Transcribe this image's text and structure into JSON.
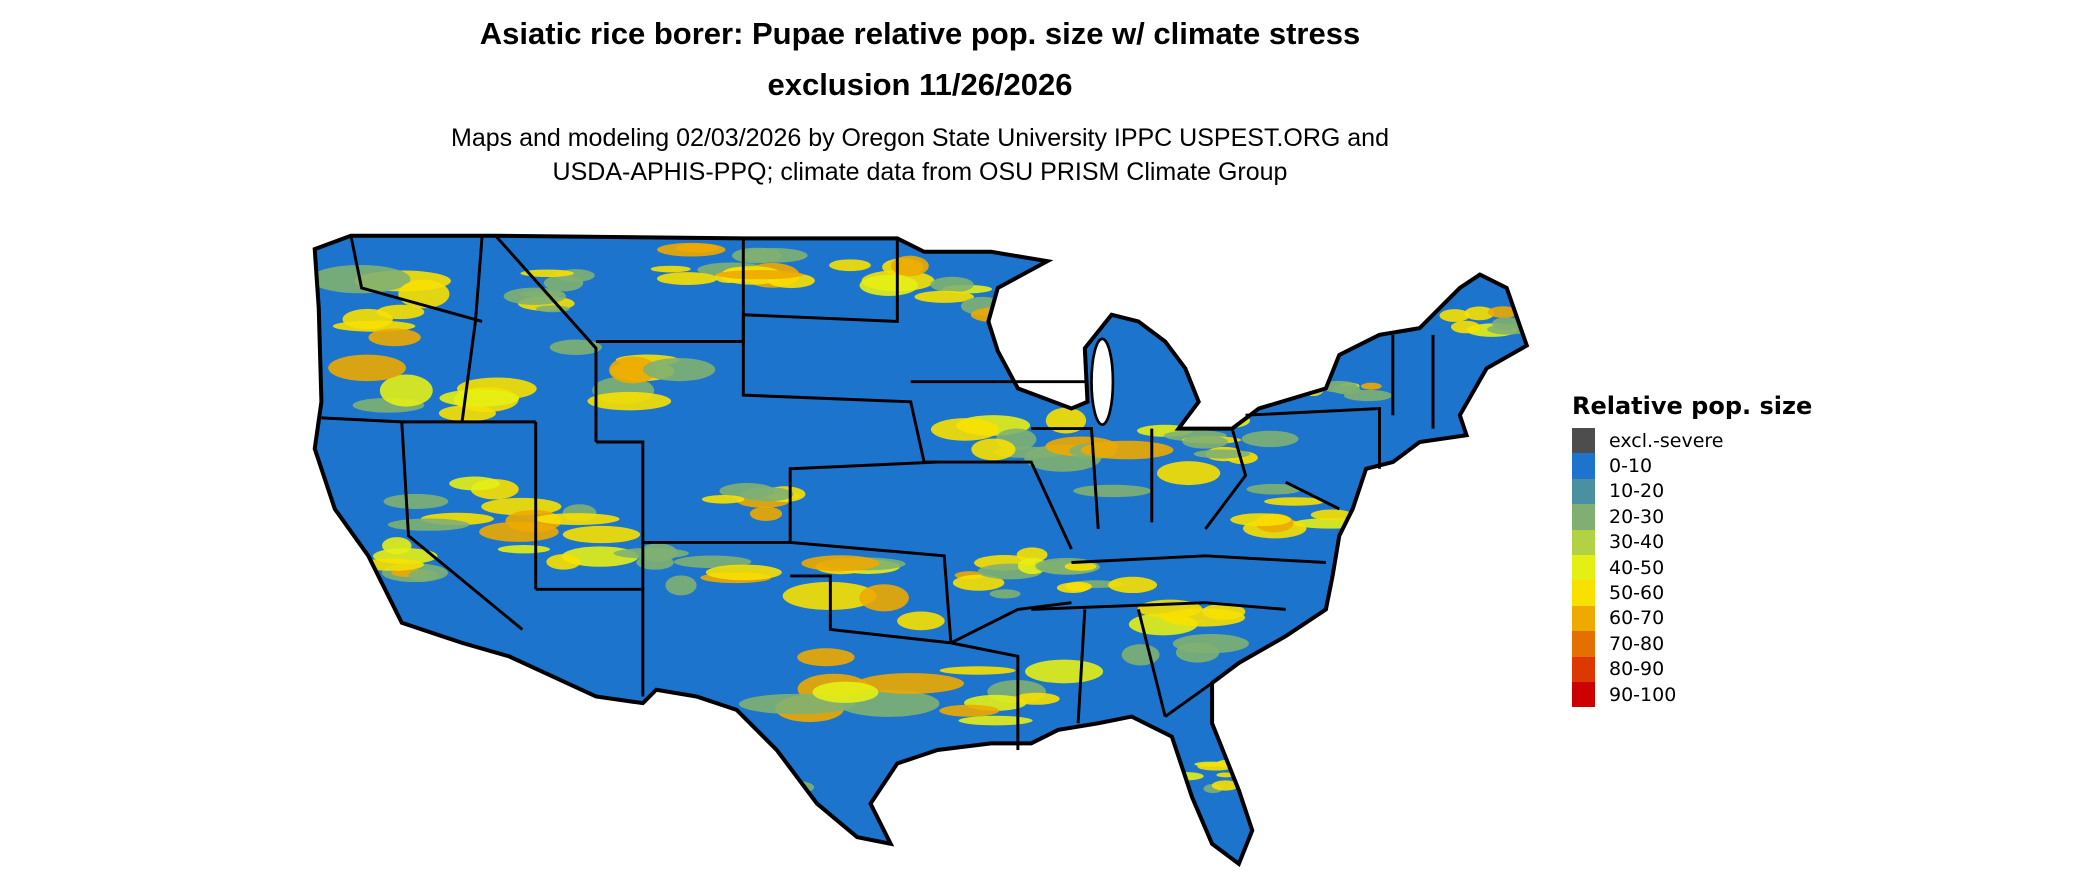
{
  "title": {
    "line1": "Asiatic rice borer: Pupae relative pop. size w/ climate stress",
    "line2": "exclusion 11/26/2026"
  },
  "subtitle": {
    "line1": "Maps and modeling 02/03/2026 by Oregon State University IPPC USPEST.ORG and",
    "line2": "USDA-APHIS-PPQ; climate data from OSU PRISM Climate Group"
  },
  "chart_data": {
    "type": "map",
    "region": "Contiguous United States, state borders",
    "legend": {
      "title": "Relative pop. size",
      "placement": "right",
      "items": [
        {
          "label": "excl.-severe",
          "color": "#4d4d4d"
        },
        {
          "label": "0-10",
          "color": "#1c74cc"
        },
        {
          "label": "10-20",
          "color": "#4a90a0"
        },
        {
          "label": "20-30",
          "color": "#7fb072"
        },
        {
          "label": "30-40",
          "color": "#b2d244"
        },
        {
          "label": "40-50",
          "color": "#e4f014"
        },
        {
          "label": "50-60",
          "color": "#f8e000"
        },
        {
          "label": "60-70",
          "color": "#eeaa00"
        },
        {
          "label": "70-80",
          "color": "#e47000"
        },
        {
          "label": "80-90",
          "color": "#dc3800"
        },
        {
          "label": "90-100",
          "color": "#cc0000"
        }
      ]
    },
    "dominant_class": "0-10",
    "notable_classes_present": [
      "20-30",
      "40-50",
      "50-60",
      "60-70"
    ]
  }
}
